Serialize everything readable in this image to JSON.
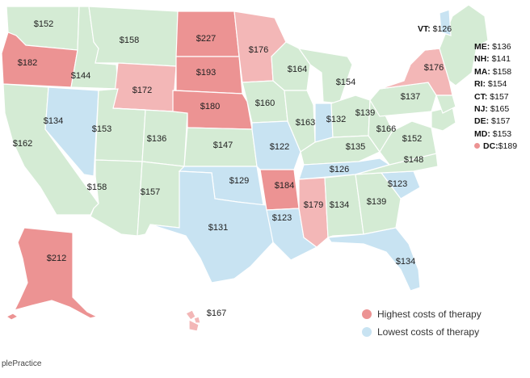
{
  "colors": {
    "high": "#ec9393",
    "mid_high": "#f3b7b7",
    "normal": "#d4ebd4",
    "low": "#c8e3f2",
    "border": "#ffffff",
    "outline": "#a9c7a9"
  },
  "states": [
    {
      "id": "WA",
      "price": "$152",
      "tier": "normal"
    },
    {
      "id": "OR",
      "price": "$182",
      "tier": "high"
    },
    {
      "id": "CA",
      "price": "$162",
      "tier": "normal"
    },
    {
      "id": "NV",
      "price": "$134",
      "tier": "low"
    },
    {
      "id": "ID",
      "price": "$144",
      "tier": "normal"
    },
    {
      "id": "MT",
      "price": "$158",
      "tier": "normal"
    },
    {
      "id": "WY",
      "price": "$172",
      "tier": "mid_high"
    },
    {
      "id": "UT",
      "price": "$153",
      "tier": "normal"
    },
    {
      "id": "AZ",
      "price": "$158",
      "tier": "normal"
    },
    {
      "id": "CO",
      "price": "$136",
      "tier": "normal"
    },
    {
      "id": "NM",
      "price": "$157",
      "tier": "normal"
    },
    {
      "id": "ND",
      "price": "$227",
      "tier": "high"
    },
    {
      "id": "SD",
      "price": "$193",
      "tier": "high"
    },
    {
      "id": "NE",
      "price": "$180",
      "tier": "high"
    },
    {
      "id": "KS",
      "price": "$147",
      "tier": "normal"
    },
    {
      "id": "OK",
      "price": "$129",
      "tier": "low"
    },
    {
      "id": "TX",
      "price": "$131",
      "tier": "low"
    },
    {
      "id": "MN",
      "price": "$176",
      "tier": "mid_high"
    },
    {
      "id": "IA",
      "price": "$160",
      "tier": "normal"
    },
    {
      "id": "MO",
      "price": "$122",
      "tier": "low"
    },
    {
      "id": "AR",
      "price": "$184",
      "tier": "high"
    },
    {
      "id": "LA",
      "price": "$123",
      "tier": "low"
    },
    {
      "id": "WI",
      "price": "$164",
      "tier": "normal"
    },
    {
      "id": "IL",
      "price": "$163",
      "tier": "normal"
    },
    {
      "id": "MI",
      "price": "$154",
      "tier": "normal"
    },
    {
      "id": "IN",
      "price": "$132",
      "tier": "low"
    },
    {
      "id": "OH",
      "price": "$139",
      "tier": "normal"
    },
    {
      "id": "KY",
      "price": "$135",
      "tier": "normal"
    },
    {
      "id": "TN",
      "price": "$126",
      "tier": "low"
    },
    {
      "id": "MS",
      "price": "$179",
      "tier": "mid_high"
    },
    {
      "id": "AL",
      "price": "$134",
      "tier": "normal"
    },
    {
      "id": "GA",
      "price": "$139",
      "tier": "normal"
    },
    {
      "id": "FL",
      "price": "$134",
      "tier": "low"
    },
    {
      "id": "SC",
      "price": "$123",
      "tier": "low"
    },
    {
      "id": "NC",
      "price": "$148",
      "tier": "normal"
    },
    {
      "id": "VA",
      "price": "$152",
      "tier": "normal"
    },
    {
      "id": "WV",
      "price": "$166",
      "tier": "normal"
    },
    {
      "id": "PA",
      "price": "$137",
      "tier": "normal"
    },
    {
      "id": "NY",
      "price": "$176",
      "tier": "mid_high"
    },
    {
      "id": "AK",
      "price": "$212",
      "tier": "high"
    },
    {
      "id": "HI",
      "price": "$167",
      "tier": "mid_high"
    }
  ],
  "vt": {
    "abbr": "VT:",
    "value": "$126"
  },
  "northeast_list": [
    {
      "abbr": "ME:",
      "value": "$136",
      "dot": false
    },
    {
      "abbr": "NH:",
      "value": "$141",
      "dot": false
    },
    {
      "abbr": "MA:",
      "value": "$158",
      "dot": false
    },
    {
      "abbr": "RI:",
      "value": "$154",
      "dot": false
    },
    {
      "abbr": "CT:",
      "value": "$157",
      "dot": false
    },
    {
      "abbr": "NJ:",
      "value": "$165",
      "dot": false
    },
    {
      "abbr": "DE:",
      "value": "$157",
      "dot": false
    },
    {
      "abbr": "MD:",
      "value": "$153",
      "dot": false
    },
    {
      "abbr": "DC:",
      "value": "$189",
      "dot": true
    }
  ],
  "legend": {
    "high_label": "Highest costs of therapy",
    "low_label": "Lowest costs of therapy"
  },
  "brand": "plePractice"
}
